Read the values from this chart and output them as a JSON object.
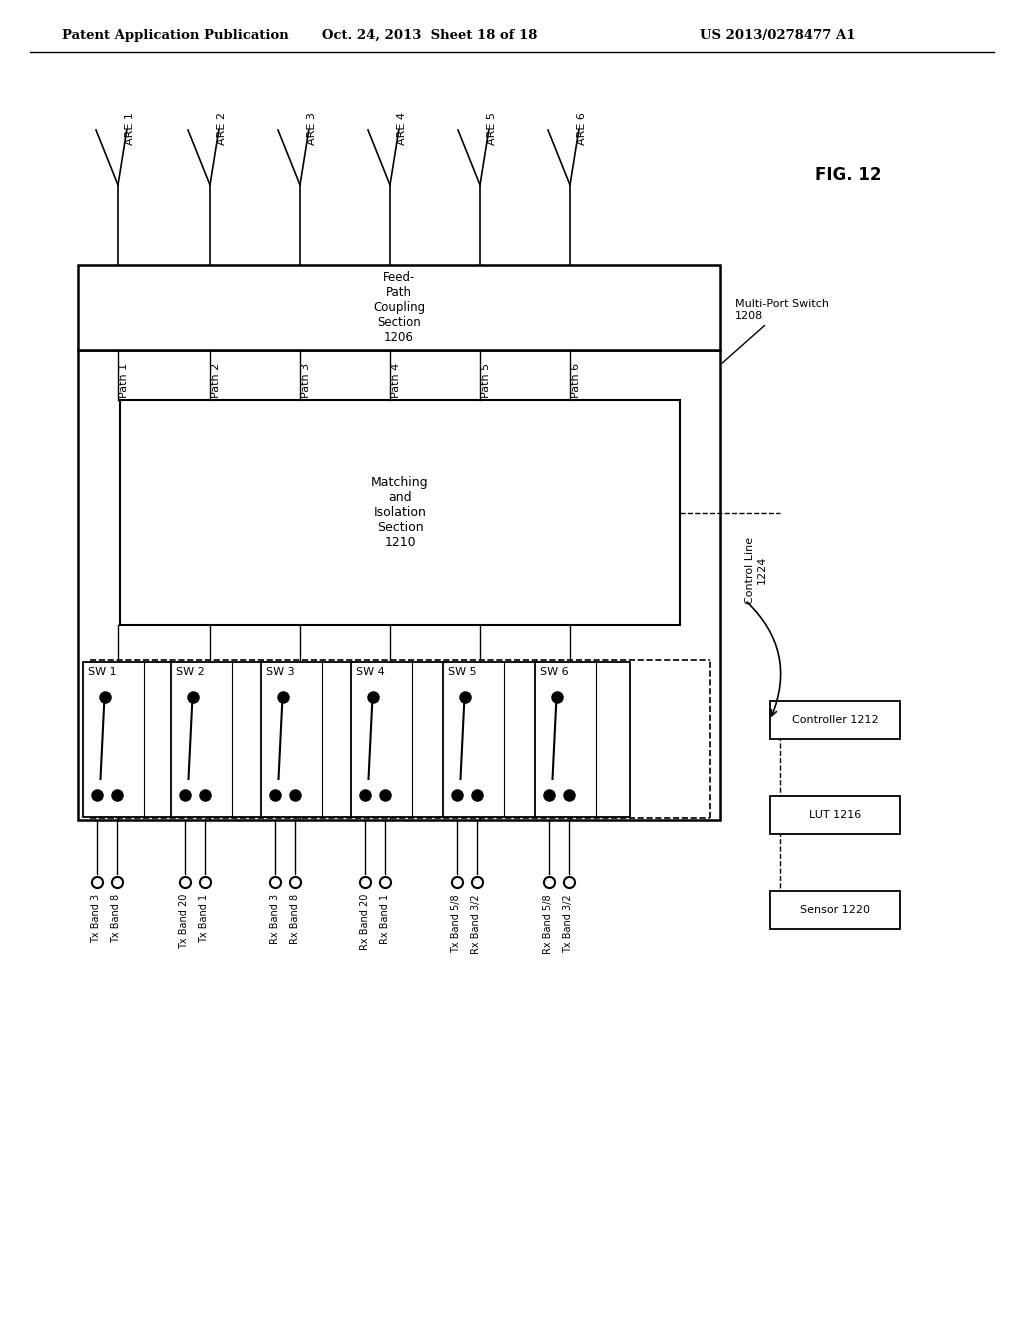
{
  "header_left": "Patent Application Publication",
  "header_mid": "Oct. 24, 2013  Sheet 18 of 18",
  "header_right": "US 2013/0278477 A1",
  "fig_label": "FIG. 12",
  "antenna_labels": [
    "ARE 1",
    "ARE 2",
    "ARE 3",
    "ARE 4",
    "ARE 5",
    "ARE 6"
  ],
  "path_labels": [
    "Path 1",
    "Path 2",
    "Path 3",
    "Path 4",
    "Path 5",
    "Path 6"
  ],
  "feedpath_box_label": "Feed-\nPath\nCoupling\nSection\n1206",
  "multiport_label": "Multi-Port Switch\n1208",
  "matching_box_label": "Matching\nand\nIsolation\nSection\n1210",
  "sw_labels": [
    "SW 1",
    "SW 2",
    "SW 3",
    "SW 4",
    "SW 5",
    "SW 6"
  ],
  "control_line_label": "Control Line\n1224",
  "controller_label": "Controller 1212",
  "lut_label": "LUT 1216",
  "sensor_label": "Sensor 1220",
  "port_labels": [
    [
      "Tx Band 3",
      "Tx Band 8"
    ],
    [
      "Tx Band 20",
      "Tx Band 1"
    ],
    [
      "Rx Band 3",
      "Rx Band 8"
    ],
    [
      "Rx Band 20",
      "Rx Band 1"
    ],
    [
      "Tx Band 5/8",
      "Rx Band 3/2"
    ],
    [
      "Rx Band 5/8",
      "Tx Band 3/2"
    ]
  ],
  "background_color": "#ffffff",
  "line_color": "#000000"
}
